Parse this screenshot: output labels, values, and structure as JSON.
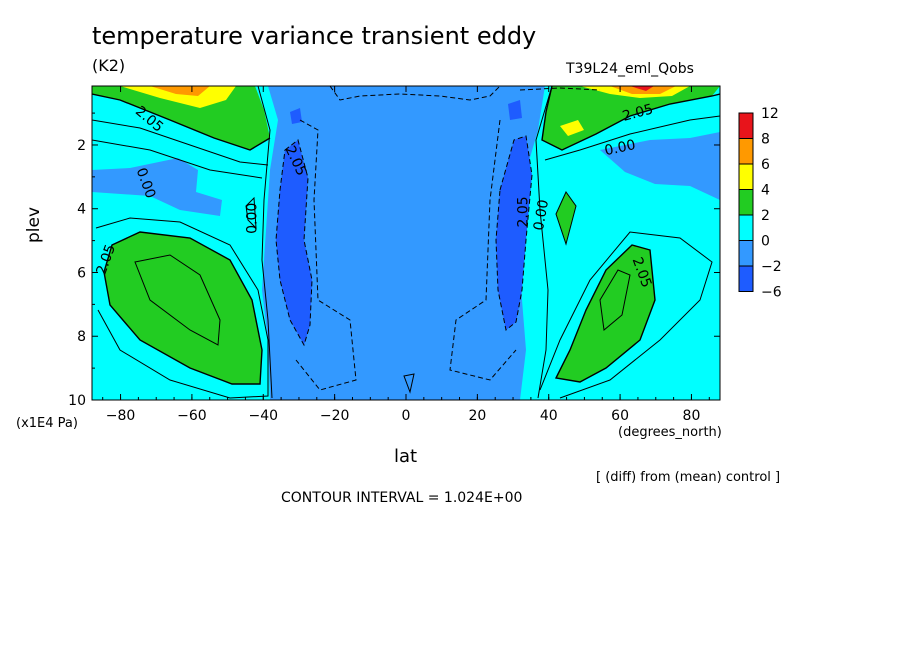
{
  "chart_data": {
    "type": "heatmap",
    "title": "temperature variance transient eddy",
    "units": "(K2)",
    "run_label": "T39L24_eml_Qobs",
    "xlabel": "lat",
    "xunits": "(degrees_north)",
    "ylabel": "plev",
    "yunits": "(x1E4 Pa)",
    "footer_note": "[ (diff) from (mean) control ]",
    "contour_interval_text": "CONTOUR INTERVAL = 1.024E+00",
    "xlim": [
      -88,
      88
    ],
    "ylim": [
      0.15,
      10
    ],
    "x_ticks": [
      -80,
      -60,
      -40,
      -20,
      0,
      20,
      40,
      60,
      80
    ],
    "x_tick_labels": [
      "−80",
      "−60",
      "−40",
      "−20",
      "0",
      "20",
      "40",
      "60",
      "80"
    ],
    "y_ticks": [
      2,
      4,
      6,
      8,
      10
    ],
    "y_tick_labels": [
      "2",
      "4",
      "6",
      "8",
      "10"
    ],
    "colorbar": {
      "levels": [
        "12",
        "8",
        "6",
        "4",
        "2",
        "0",
        "−2",
        "−6"
      ],
      "colors": [
        "#e8141b",
        "#ff9900",
        "#ffff00",
        "#22cc22",
        "#00ffff",
        "#3399ff",
        "#1e5cff"
      ]
    },
    "contour_labels": [
      {
        "text": "2.05",
        "lat": -72,
        "plev": 1.2,
        "angle": 40
      },
      {
        "text": "0.00",
        "lat": -73,
        "plev": 3.2,
        "angle": 70
      },
      {
        "text": "0.00",
        "lat": -43,
        "plev": 4.3,
        "angle": -90
      },
      {
        "text": "2.05",
        "lat": -84,
        "plev": 5.6,
        "angle": -70
      },
      {
        "text": "2.05",
        "lat": -31,
        "plev": 2.5,
        "angle": 65
      },
      {
        "text": "2.05",
        "lat": 33,
        "plev": 4.1,
        "angle": -90
      },
      {
        "text": "0.00",
        "lat": 38,
        "plev": 4.2,
        "angle": -80
      },
      {
        "text": "2.05",
        "lat": 65,
        "plev": 1.0,
        "angle": -15
      },
      {
        "text": "0.00",
        "lat": 60,
        "plev": 2.1,
        "angle": -12
      },
      {
        "text": "2.05",
        "lat": 66,
        "plev": 6.0,
        "angle": 70
      }
    ],
    "regions": [
      {
        "name": "background",
        "level": "0-2"
      },
      {
        "name": "central-negative",
        "level": "-2-0"
      },
      {
        "name": "left-upper-positive",
        "level": "2-4"
      },
      {
        "name": "left-lower-positive",
        "level": "2-4"
      },
      {
        "name": "right-upper-positive",
        "level": "2-4"
      },
      {
        "name": "right-lower-positive",
        "level": "2-4"
      },
      {
        "name": "left-jet-strong-negative",
        "level": "-6--2"
      },
      {
        "name": "right-jet-strong-negative",
        "level": "-6--2"
      }
    ]
  }
}
